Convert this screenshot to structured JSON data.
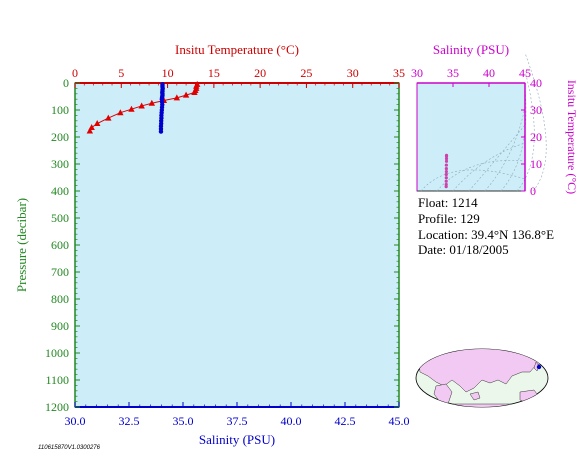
{
  "chart_data": [
    {
      "type": "scatter",
      "xlabel_top": "Insitu Temperature (°C)",
      "xlabel_bottom": "Salinity (PSU)",
      "ylabel": "Pressure (decibar)",
      "temp_axis": {
        "min": 0,
        "max": 35,
        "ticks": [
          "0",
          "5",
          "10",
          "15",
          "20",
          "25",
          "30",
          "35"
        ]
      },
      "sal_axis": {
        "min": 30.0,
        "max": 45.0,
        "ticks": [
          "30.0",
          "32.5",
          "35.0",
          "37.5",
          "40.0",
          "42.5",
          "45.0"
        ]
      },
      "pressure_axis": {
        "min": 0,
        "max": 1200,
        "ticks": [
          "0",
          "100",
          "200",
          "300",
          "400",
          "500",
          "600",
          "700",
          "800",
          "900",
          "1000",
          "1100",
          "1200"
        ]
      },
      "grid": false,
      "series": [
        {
          "color": "#e00000",
          "marker": "triangle",
          "points": [
            [
              13.2,
              5
            ],
            [
              13.1,
              12
            ],
            [
              13.1,
              20
            ],
            [
              13.0,
              28
            ],
            [
              12.9,
              35
            ],
            [
              12.0,
              45
            ],
            [
              11.0,
              55
            ],
            [
              9.6,
              65
            ],
            [
              8.3,
              75
            ],
            [
              7.2,
              85
            ],
            [
              6.1,
              97
            ],
            [
              4.9,
              110
            ],
            [
              3.6,
              130
            ],
            [
              2.4,
              150
            ],
            [
              1.8,
              165
            ],
            [
              1.6,
              178
            ]
          ]
        },
        {
          "color": "#0000cc",
          "marker": "circle",
          "points": [
            [
              34.05,
              5
            ],
            [
              34.05,
              10
            ],
            [
              34.05,
              15
            ],
            [
              34.06,
              20
            ],
            [
              34.05,
              25
            ],
            [
              34.05,
              30
            ],
            [
              34.04,
              35
            ],
            [
              34.05,
              40
            ],
            [
              34.05,
              45
            ],
            [
              34.04,
              50
            ],
            [
              34.03,
              55
            ],
            [
              34.02,
              60
            ],
            [
              34.03,
              70
            ],
            [
              34.04,
              80
            ],
            [
              34.03,
              90
            ],
            [
              34.02,
              100
            ],
            [
              34.01,
              110
            ],
            [
              34.0,
              120
            ],
            [
              34.0,
              130
            ],
            [
              33.99,
              140
            ],
            [
              33.99,
              150
            ],
            [
              33.98,
              160
            ],
            [
              33.98,
              170
            ],
            [
              33.98,
              180
            ]
          ]
        }
      ]
    },
    {
      "type": "scatter",
      "xlabel": "Salinity (PSU)",
      "ylabel": "Insitu Temperature (°C)",
      "x_axis": {
        "min": 30,
        "max": 45,
        "ticks": [
          "30",
          "35",
          "40",
          "45"
        ]
      },
      "y_axis": {
        "min": 0,
        "max": 40,
        "ticks": [
          "0",
          "10",
          "20",
          "30",
          "40"
        ]
      },
      "series": [
        {
          "color": "#cc44aa",
          "marker": "circle",
          "points": [
            [
              34.05,
              1.6
            ],
            [
              34.06,
              2.4
            ],
            [
              34.06,
              3.6
            ],
            [
              34.07,
              4.9
            ],
            [
              34.07,
              6.1
            ],
            [
              34.08,
              7.2
            ],
            [
              34.08,
              8.3
            ],
            [
              34.08,
              9.6
            ],
            [
              34.1,
              11.0
            ],
            [
              34.1,
              12.0
            ],
            [
              34.1,
              12.9
            ],
            [
              34.1,
              13.2
            ]
          ]
        }
      ]
    }
  ],
  "info": {
    "float": "Float:  1214",
    "profile": "Profile:  129",
    "location": "Location:  39.4°N  136.8°E",
    "date": "Date:  01/18/2005"
  },
  "stamp": "110615870V1.0300276",
  "colors": {
    "plot_bg": "#cdeef9",
    "temperature": "#cc0000",
    "salinity_axis": "#0000cc",
    "ts_axis": "#cc00cc",
    "axis": "#228822",
    "map_land": "#f2c9f2",
    "map_ocean": "#eaf7ea"
  }
}
